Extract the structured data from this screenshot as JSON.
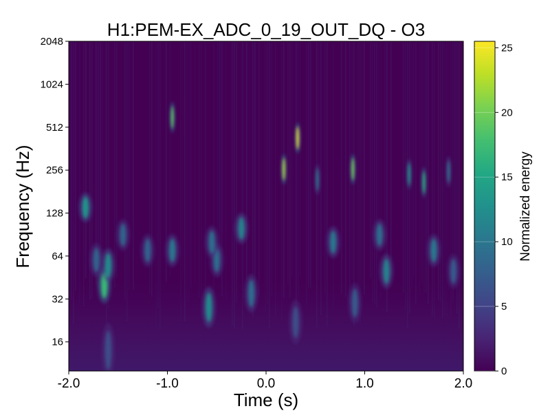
{
  "chart_data": {
    "type": "heatmap",
    "title": "H1:PEM-EX_ADC_0_19_OUT_DQ - O3",
    "xlabel": "Time (s)",
    "ylabel": "Frequency (Hz)",
    "xlim": [
      -2.0,
      2.0
    ],
    "ylim": [
      10,
      2048
    ],
    "yscale": "log",
    "x_ticks": [
      -2.0,
      -1.0,
      0.0,
      1.0,
      2.0
    ],
    "x_tick_labels": [
      "-2.0",
      "-1.0",
      "0.0",
      "1.0",
      "2.0"
    ],
    "y_ticks": [
      16,
      32,
      64,
      128,
      256,
      512,
      1024,
      2048
    ],
    "y_tick_labels": [
      "16",
      "32",
      "64",
      "128",
      "256",
      "512",
      "1024",
      "2048"
    ],
    "colorbar": {
      "label": "Normalized energy",
      "range": [
        0,
        25.5
      ],
      "ticks": [
        0,
        5,
        10,
        15,
        20,
        25
      ],
      "tick_labels": [
        "0",
        "5",
        "10",
        "15",
        "20",
        "25"
      ],
      "colormap": "viridis"
    },
    "blobs": [
      {
        "t": -1.64,
        "f": 40,
        "energy": 17
      },
      {
        "t": -1.6,
        "f": 55,
        "energy": 12
      },
      {
        "t": -1.72,
        "f": 60,
        "energy": 8
      },
      {
        "t": -1.83,
        "f": 140,
        "energy": 13
      },
      {
        "t": -1.6,
        "f": 14,
        "energy": 6
      },
      {
        "t": -1.45,
        "f": 90,
        "energy": 8
      },
      {
        "t": -1.2,
        "f": 70,
        "energy": 8
      },
      {
        "t": -0.95,
        "f": 600,
        "energy": 19
      },
      {
        "t": -0.95,
        "f": 70,
        "energy": 10
      },
      {
        "t": -0.58,
        "f": 28,
        "energy": 12
      },
      {
        "t": -0.5,
        "f": 60,
        "energy": 9
      },
      {
        "t": -0.55,
        "f": 80,
        "energy": 9
      },
      {
        "t": -0.25,
        "f": 100,
        "energy": 11
      },
      {
        "t": -0.15,
        "f": 35,
        "energy": 9
      },
      {
        "t": 0.18,
        "f": 260,
        "energy": 22
      },
      {
        "t": 0.32,
        "f": 430,
        "energy": 24
      },
      {
        "t": 0.3,
        "f": 22,
        "energy": 6
      },
      {
        "t": 0.52,
        "f": 220,
        "energy": 10
      },
      {
        "t": 0.68,
        "f": 80,
        "energy": 10
      },
      {
        "t": 0.88,
        "f": 260,
        "energy": 20
      },
      {
        "t": 0.9,
        "f": 30,
        "energy": 7
      },
      {
        "t": 1.22,
        "f": 50,
        "energy": 11
      },
      {
        "t": 1.15,
        "f": 90,
        "energy": 9
      },
      {
        "t": 1.45,
        "f": 240,
        "energy": 13
      },
      {
        "t": 1.6,
        "f": 210,
        "energy": 16
      },
      {
        "t": 1.7,
        "f": 70,
        "energy": 10
      },
      {
        "t": 1.85,
        "f": 250,
        "energy": 10
      },
      {
        "t": 1.9,
        "f": 50,
        "energy": 7
      }
    ]
  }
}
